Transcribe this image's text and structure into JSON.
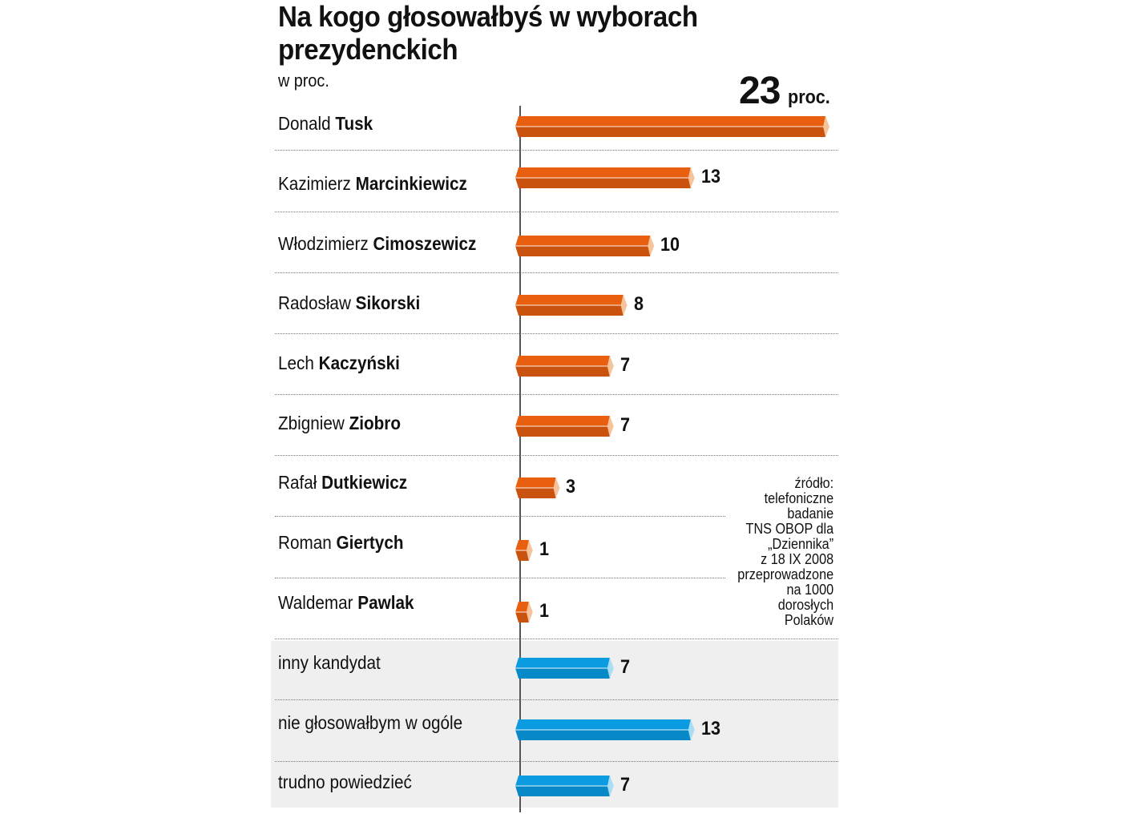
{
  "chart_data": {
    "type": "bar",
    "title": "Na kogo głosowałbyś w wyborach prezydenckich",
    "subtitle": "w proc.",
    "max_label": {
      "value": "23",
      "unit": "proc."
    },
    "categories": [
      {
        "first": "Donald",
        "last": "Tusk"
      },
      {
        "first": "Kazimierz",
        "last": "Marcinkiewicz"
      },
      {
        "first": "Włodzimierz",
        "last": "Cimoszewicz"
      },
      {
        "first": "Radosław",
        "last": "Sikorski"
      },
      {
        "first": "Lech",
        "last": "Kaczyński"
      },
      {
        "first": "Zbigniew",
        "last": "Ziobro"
      },
      {
        "first": "Rafał",
        "last": "Dutkiewicz"
      },
      {
        "first": "Roman",
        "last": "Giertych"
      },
      {
        "first": "Waldemar",
        "last": "Pawlak"
      },
      {
        "first": "inny kandydat",
        "last": ""
      },
      {
        "first": "nie głosowałbym w ogóle",
        "last": ""
      },
      {
        "first": "trudno powiedzieć",
        "last": ""
      }
    ],
    "values": [
      23,
      13,
      10,
      8,
      7,
      7,
      3,
      1,
      1,
      7,
      13,
      7
    ],
    "groups": [
      "candidate",
      "candidate",
      "candidate",
      "candidate",
      "candidate",
      "candidate",
      "candidate",
      "candidate",
      "candidate",
      "other",
      "other",
      "other"
    ],
    "colors": {
      "candidate": "#e8600f",
      "candidate_dark": "#c9530e",
      "candidate_tip": "#f6c39a",
      "other": "#0a9be0",
      "other_dark": "#0889c7",
      "other_tip": "#a9dcf5"
    },
    "xlim": [
      0,
      23
    ],
    "source": [
      "źródło:",
      "telefoniczne",
      "badanie",
      "TNS OBOP dla",
      "„Dziennika”",
      "z 18 IX 2008",
      "przeprowadzone",
      "na 1000",
      "dorosłych",
      "Polaków"
    ]
  }
}
